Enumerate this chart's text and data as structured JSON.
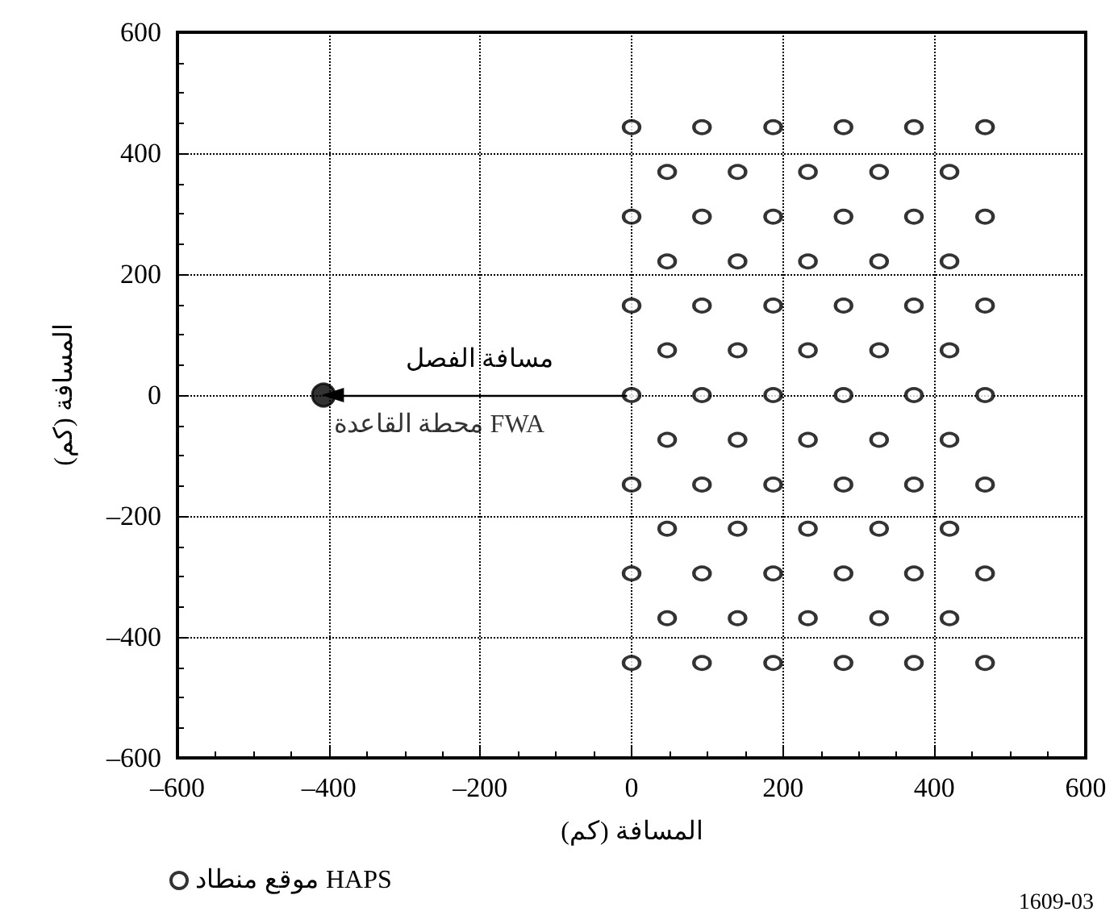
{
  "chart_data": {
    "type": "scatter",
    "xlabel": "المسافة (كم)",
    "ylabel": "المسافة (كم)",
    "xlim": [
      -600,
      600
    ],
    "xticks": [
      {
        "value": -600,
        "label": "–600"
      },
      {
        "value": -400,
        "label": "–400"
      },
      {
        "value": -200,
        "label": "–200"
      },
      0,
      200,
      400,
      600
    ],
    "ylim": [
      -600,
      600
    ],
    "yticks": [
      {
        "value": -600,
        "label": "–600"
      },
      {
        "value": -400,
        "label": "–400"
      },
      {
        "value": -200,
        "label": "–200"
      },
      0,
      200,
      400,
      600
    ],
    "grid": true,
    "legend": "bottom left",
    "series": [
      {
        "name": "موقع منطاد HAPS",
        "color": "#000000",
        "marker": "circle",
        "x": [
          0,
          93,
          187,
          280,
          373,
          467,
          47,
          140,
          233,
          327,
          420,
          0,
          93,
          187,
          280,
          373,
          467,
          47,
          140,
          233,
          327,
          420,
          0,
          93,
          187,
          280,
          373,
          467,
          47,
          140,
          233,
          327,
          420,
          0,
          93,
          187,
          280,
          373,
          467,
          47,
          140,
          233,
          327,
          420,
          0,
          93,
          187,
          280,
          373,
          467,
          47,
          140,
          233,
          327,
          420,
          0,
          93,
          187,
          280,
          373,
          467,
          47,
          140,
          233,
          327,
          420,
          0,
          93,
          187,
          280,
          373,
          467
        ],
        "values": [
          443,
          443,
          443,
          443,
          443,
          443,
          369,
          369,
          369,
          369,
          369,
          295,
          295,
          295,
          295,
          295,
          295,
          221,
          221,
          221,
          221,
          221,
          148,
          148,
          148,
          148,
          148,
          148,
          74,
          74,
          74,
          74,
          74,
          0,
          0,
          0,
          0,
          0,
          0,
          -74,
          -74,
          -74,
          -74,
          -74,
          -148,
          -148,
          -148,
          -148,
          -148,
          -148,
          -221,
          -221,
          -221,
          -221,
          -221,
          -295,
          -295,
          -295,
          -295,
          -295,
          -295,
          -369,
          -369,
          -369,
          -369,
          -369,
          -443,
          -443,
          -443,
          -443,
          -443,
          -443
        ]
      },
      {
        "name": "محطة القاعدة FWA",
        "color": "#000000",
        "marker": "circle",
        "x": [
          -407
        ],
        "values": [
          0
        ]
      }
    ],
    "annotations": [
      "مسافة الفصل",
      "1609-03"
    ]
  }
}
